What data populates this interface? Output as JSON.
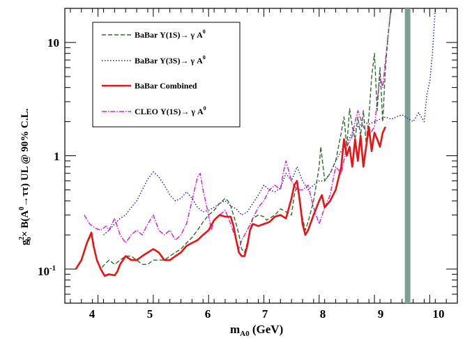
{
  "chart_data": {
    "type": "line",
    "title": "",
    "xlabel_main": "m",
    "xlabel_sub": "A0",
    "xlabel_unit": " (GeV)",
    "ylabel": "g_b^2× B(A^0→ττ) UL @ 90% C.L.",
    "ylabel_parts": {
      "g": "g",
      "sup2": "2",
      "sub_b": "b",
      "mid": "× B(A",
      "sup0": "0",
      "arrow": "→ττ) UL @ 90% C.L."
    },
    "xlim": [
      3.4,
      10.5
    ],
    "ylim": [
      0.05,
      20
    ],
    "yscale": "log",
    "x_ticks": [
      4,
      5,
      6,
      7,
      8,
      9,
      10
    ],
    "x_tick_labels": [
      "4",
      "5",
      "6",
      "7",
      "8",
      "9",
      "10"
    ],
    "y_ticks": [
      0.1,
      1,
      10
    ],
    "y_tick_labels_base": [
      "10",
      "1",
      "10"
    ],
    "y_tick_labels_exp": [
      "-1",
      "",
      ""
    ],
    "excluded_band": {
      "x_from": 9.55,
      "x_to": 9.65,
      "color": "#7f9f95"
    },
    "legend": {
      "position": "top-left",
      "entries": [
        {
          "label": "BaBar Υ(1S)→ γ A",
          "sup": "0"
        },
        {
          "label": "BaBar Υ(3S)→ γ A",
          "sup": "0"
        },
        {
          "label": "BaBar Combined",
          "sup": ""
        },
        {
          "label": "CLEO Υ(1S)→ γ A",
          "sup": "0"
        }
      ]
    },
    "series": [
      {
        "name": "BaBar Υ(1S)→ γ A0",
        "color": "#2e6b2e",
        "dash": "6,3",
        "width": 1.4,
        "x": [
          3.6,
          3.7,
          3.8,
          3.88,
          3.92,
          3.98,
          4.05,
          4.12,
          4.2,
          4.3,
          4.4,
          4.5,
          4.6,
          4.7,
          4.8,
          4.9,
          5.0,
          5.1,
          5.2,
          5.3,
          5.4,
          5.5,
          5.6,
          5.7,
          5.8,
          5.9,
          6.0,
          6.1,
          6.2,
          6.3,
          6.35,
          6.4,
          6.45,
          6.5,
          6.55,
          6.6,
          6.65,
          6.7,
          6.75,
          6.8,
          6.9,
          7.0,
          7.05,
          7.1,
          7.2,
          7.3,
          7.4,
          7.5,
          7.55,
          7.6,
          7.65,
          7.7,
          7.75,
          7.8,
          7.9,
          8.0,
          8.03,
          8.06,
          8.1,
          8.2,
          8.3,
          8.4,
          8.45,
          8.5,
          8.55,
          8.6,
          8.65,
          8.7,
          8.75,
          8.8,
          8.85,
          8.9,
          8.95,
          9.0,
          9.05,
          9.1,
          9.15,
          9.2,
          9.25,
          9.3
        ],
        "y": [
          0.1,
          0.12,
          0.17,
          0.2,
          0.17,
          0.12,
          0.1,
          0.11,
          0.12,
          0.11,
          0.12,
          0.13,
          0.13,
          0.12,
          0.11,
          0.11,
          0.12,
          0.12,
          0.12,
          0.13,
          0.14,
          0.15,
          0.17,
          0.19,
          0.22,
          0.26,
          0.3,
          0.33,
          0.38,
          0.42,
          0.4,
          0.36,
          0.3,
          0.25,
          0.2,
          0.15,
          0.14,
          0.17,
          0.22,
          0.28,
          0.3,
          0.29,
          0.27,
          0.28,
          0.3,
          0.34,
          0.32,
          0.3,
          0.45,
          0.55,
          0.4,
          0.28,
          0.22,
          0.26,
          0.4,
          0.8,
          1.2,
          0.9,
          0.6,
          0.7,
          0.9,
          1.6,
          2.2,
          1.2,
          2.6,
          1.8,
          1.4,
          2.2,
          1.5,
          2.5,
          1.3,
          2.2,
          5.0,
          8.0,
          2.5,
          6.0,
          2.0,
          6.0,
          12.0,
          20.0
        ]
      },
      {
        "name": "BaBar Υ(3S)→ γ A0",
        "color": "#2020cc",
        "dash": "1.5,2.5",
        "width": 1.5,
        "x": [
          4.1,
          4.2,
          4.3,
          4.4,
          4.5,
          4.6,
          4.7,
          4.8,
          4.9,
          5.0,
          5.1,
          5.2,
          5.3,
          5.4,
          5.5,
          5.6,
          5.7,
          5.8,
          5.9,
          6.0,
          6.1,
          6.2,
          6.3,
          6.4,
          6.5,
          6.6,
          6.7,
          6.8,
          6.9,
          7.0,
          7.1,
          7.2,
          7.3,
          7.4,
          7.5,
          7.6,
          7.7,
          7.8,
          7.9,
          8.0,
          8.1,
          8.2,
          8.3,
          8.4,
          8.5,
          8.6,
          8.7,
          8.8,
          8.9,
          9.0,
          9.1,
          9.2,
          9.3,
          9.4,
          9.5,
          9.7,
          9.8,
          9.9,
          9.95,
          10.0,
          10.05,
          10.1
        ],
        "y": [
          0.2,
          0.22,
          0.25,
          0.28,
          0.3,
          0.35,
          0.4,
          0.5,
          0.62,
          0.72,
          0.65,
          0.55,
          0.45,
          0.4,
          0.42,
          0.48,
          0.42,
          0.35,
          0.32,
          0.33,
          0.35,
          0.38,
          0.4,
          0.36,
          0.34,
          0.3,
          0.32,
          0.38,
          0.45,
          0.55,
          0.5,
          0.48,
          0.52,
          0.7,
          0.6,
          0.8,
          0.6,
          0.5,
          0.55,
          0.6,
          0.6,
          0.7,
          0.9,
          1.1,
          1.3,
          1.6,
          1.8,
          2.0,
          1.9,
          2.0,
          2.1,
          2.2,
          2.1,
          2.2,
          2.3,
          2.0,
          2.4,
          2.0,
          3.5,
          4.5,
          8.0,
          20.0
        ]
      },
      {
        "name": "BaBar Combined",
        "color": "#ee1111",
        "dash": "",
        "width": 2.6,
        "x": [
          3.6,
          3.7,
          3.8,
          3.88,
          3.92,
          3.98,
          4.05,
          4.12,
          4.2,
          4.3,
          4.35,
          4.4,
          4.5,
          4.6,
          4.7,
          4.8,
          4.9,
          5.0,
          5.1,
          5.2,
          5.3,
          5.4,
          5.5,
          5.6,
          5.7,
          5.8,
          5.9,
          6.0,
          6.1,
          6.2,
          6.3,
          6.4,
          6.45,
          6.5,
          6.55,
          6.6,
          6.65,
          6.7,
          6.75,
          6.8,
          6.9,
          7.0,
          7.1,
          7.2,
          7.3,
          7.4,
          7.5,
          7.55,
          7.6,
          7.65,
          7.7,
          7.75,
          7.8,
          7.9,
          8.0,
          8.05,
          8.1,
          8.2,
          8.3,
          8.4,
          8.45,
          8.5,
          8.55,
          8.6,
          8.65,
          8.7,
          8.75,
          8.8,
          8.85,
          8.9,
          8.95,
          9.0,
          9.05,
          9.1,
          9.15,
          9.2
        ],
        "y": [
          0.1,
          0.12,
          0.17,
          0.21,
          0.16,
          0.12,
          0.1,
          0.087,
          0.09,
          0.088,
          0.095,
          0.11,
          0.13,
          0.12,
          0.12,
          0.13,
          0.14,
          0.15,
          0.14,
          0.12,
          0.12,
          0.13,
          0.14,
          0.16,
          0.17,
          0.18,
          0.2,
          0.22,
          0.27,
          0.3,
          0.29,
          0.29,
          0.24,
          0.18,
          0.14,
          0.13,
          0.13,
          0.16,
          0.22,
          0.25,
          0.24,
          0.25,
          0.26,
          0.29,
          0.3,
          0.28,
          0.42,
          0.55,
          0.6,
          0.4,
          0.25,
          0.2,
          0.22,
          0.3,
          0.4,
          0.45,
          0.35,
          0.4,
          0.5,
          0.8,
          1.4,
          1.0,
          1.2,
          0.8,
          1.4,
          0.9,
          1.5,
          0.8,
          1.2,
          1.8,
          1.1,
          1.6,
          1.4,
          1.2,
          1.6,
          1.8
        ]
      },
      {
        "name": "CLEO Υ(1S)→ γ A0",
        "color": "#e020e0",
        "dash": "7,2,1.5,2",
        "width": 1.5,
        "x": [
          3.75,
          3.85,
          3.95,
          4.05,
          4.15,
          4.2,
          4.3,
          4.4,
          4.5,
          4.6,
          4.7,
          4.8,
          4.9,
          5.0,
          5.1,
          5.2,
          5.3,
          5.4,
          5.5,
          5.6,
          5.7,
          5.8,
          5.85,
          5.9,
          6.0,
          6.05,
          6.1,
          6.2,
          6.3,
          6.4,
          6.5,
          6.55,
          6.6,
          6.7,
          6.8,
          6.9,
          7.0,
          7.1,
          7.2,
          7.3,
          7.35,
          7.4,
          7.5,
          7.6,
          7.7,
          7.8,
          7.9,
          8.0,
          8.1,
          8.2,
          8.3,
          8.4,
          8.5,
          8.6,
          8.65,
          8.7,
          8.8,
          8.9,
          9.0,
          9.05,
          9.1,
          9.15,
          9.2,
          9.25,
          9.3
        ],
        "y": [
          0.3,
          0.25,
          0.23,
          0.22,
          0.24,
          0.22,
          0.28,
          0.2,
          0.17,
          0.2,
          0.22,
          0.2,
          0.25,
          0.3,
          0.22,
          0.2,
          0.22,
          0.18,
          0.2,
          0.25,
          0.4,
          0.65,
          0.7,
          0.5,
          0.3,
          0.22,
          0.27,
          0.3,
          0.33,
          0.25,
          0.18,
          0.15,
          0.18,
          0.22,
          0.28,
          0.35,
          0.4,
          0.5,
          0.55,
          0.5,
          0.7,
          0.9,
          0.6,
          0.5,
          0.5,
          0.55,
          0.35,
          0.25,
          0.35,
          0.45,
          0.8,
          0.7,
          1.2,
          1.5,
          2.0,
          2.5,
          1.8,
          1.5,
          1.8,
          3.0,
          5.0,
          4.0,
          7.0,
          12.0,
          20.0
        ]
      }
    ]
  }
}
